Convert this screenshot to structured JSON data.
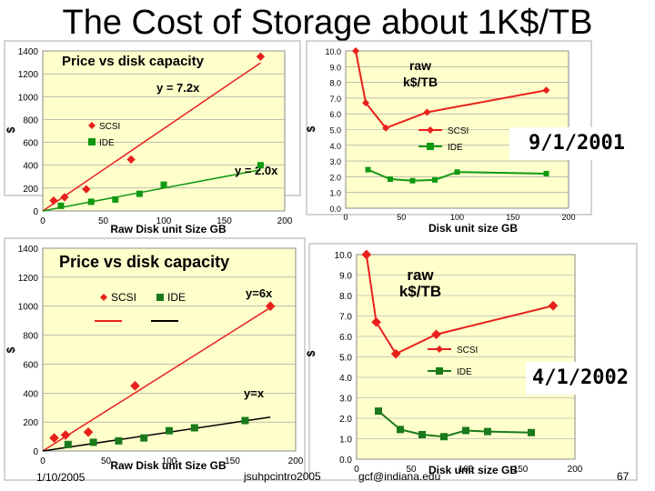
{
  "slide": {
    "title": "The Cost of Storage about 1K$/TB",
    "date_label_1": "9/1/2001",
    "date_label_2": "4/1/2002",
    "footer_date": "1/10/2005",
    "footer_author": "jsuhpcintro2005",
    "footer_email": "gcf@indiana.edu",
    "page_number": "67"
  },
  "colors": {
    "plot_bg": "#ffffcc",
    "scsi": "#e8201c",
    "ide_2001": "#119911",
    "ide_2002": "#1a7a1a",
    "fit_2002": "#000000"
  },
  "chart_data": [
    {
      "type": "scatter",
      "title": "Price vs disk capacity",
      "xlabel": "Raw Disk unit Size GB",
      "ylabel": "$",
      "xlim": [
        0,
        200
      ],
      "ylim": [
        0,
        1400
      ],
      "xticks": [
        "0",
        "50",
        "100",
        "150",
        "200"
      ],
      "yticks": [
        "0",
        "200",
        "400",
        "600",
        "800",
        "1000",
        "1200",
        "1400"
      ],
      "grid": true,
      "legend_position": "left",
      "series": [
        {
          "name": "SCSI",
          "x": [
            9,
            18,
            36,
            73,
            180
          ],
          "y": [
            90,
            120,
            190,
            450,
            1350
          ]
        },
        {
          "name": "IDE",
          "x": [
            15,
            40,
            60,
            80,
            100,
            180
          ],
          "y": [
            45,
            80,
            100,
            150,
            230,
            400
          ]
        }
      ],
      "fits": [
        {
          "label": "y = 7.2x",
          "slope": 7.2
        },
        {
          "label": "y = 2.0x",
          "slope": 2.0
        }
      ]
    },
    {
      "type": "line",
      "title": "raw k$/TB",
      "xlabel": "Disk unit size GB",
      "ylabel": "$",
      "xlim": [
        0,
        200
      ],
      "ylim": [
        0,
        10
      ],
      "xticks": [
        "0",
        "50",
        "100",
        "150",
        "200"
      ],
      "yticks": [
        "0.0",
        "1.0",
        "2.0",
        "3.0",
        "4.0",
        "5.0",
        "6.0",
        "7.0",
        "8.0",
        "9.0",
        "10.0"
      ],
      "grid": true,
      "legend_position": "right",
      "series": [
        {
          "name": "SCSI",
          "x": [
            9,
            18,
            36,
            73,
            180
          ],
          "y": [
            10.0,
            6.7,
            5.1,
            6.1,
            7.5
          ]
        },
        {
          "name": "IDE",
          "x": [
            20,
            40,
            60,
            80,
            100,
            180
          ],
          "y": [
            2.45,
            1.85,
            1.75,
            1.8,
            2.3,
            2.2
          ]
        }
      ]
    },
    {
      "type": "scatter",
      "title": "Price vs disk capacity",
      "xlabel": "Raw Disk unit Size GB",
      "ylabel": "$",
      "xlim": [
        0,
        200
      ],
      "ylim": [
        0,
        1400
      ],
      "xticks": [
        "0",
        "50",
        "100",
        "150",
        "200"
      ],
      "yticks": [
        "0",
        "200",
        "400",
        "600",
        "800",
        "1000",
        "1200",
        "1400"
      ],
      "grid": true,
      "legend_position": "top-left",
      "series": [
        {
          "name": "SCSI",
          "x": [
            9,
            18,
            36,
            73,
            180
          ],
          "y": [
            90,
            110,
            130,
            450,
            1000
          ]
        },
        {
          "name": "IDE",
          "x": [
            20,
            40,
            60,
            80,
            100,
            120,
            160
          ],
          "y": [
            45,
            60,
            70,
            90,
            140,
            160,
            210
          ]
        }
      ],
      "fits": [
        {
          "label": "y=6x",
          "slope": 5.5
        },
        {
          "label": "y=x",
          "slope": 1.3
        }
      ]
    },
    {
      "type": "line",
      "title": "raw k$/TB",
      "xlabel": "Disk unit size GB",
      "ylabel": "$",
      "xlim": [
        0,
        200
      ],
      "ylim": [
        0,
        10
      ],
      "xticks": [
        "0",
        "50",
        "100",
        "150",
        "200"
      ],
      "yticks": [
        "0.0",
        "1.0",
        "2.0",
        "3.0",
        "4.0",
        "5.0",
        "6.0",
        "7.0",
        "8.0",
        "9.0",
        "10.0"
      ],
      "grid": true,
      "legend_position": "center",
      "series": [
        {
          "name": "SCSI",
          "x": [
            9,
            18,
            36,
            73,
            180
          ],
          "y": [
            10.0,
            6.7,
            5.15,
            6.1,
            7.5
          ]
        },
        {
          "name": "IDE",
          "x": [
            20,
            40,
            60,
            80,
            100,
            120,
            160
          ],
          "y": [
            2.35,
            1.45,
            1.2,
            1.1,
            1.4,
            1.35,
            1.3
          ]
        }
      ]
    }
  ]
}
